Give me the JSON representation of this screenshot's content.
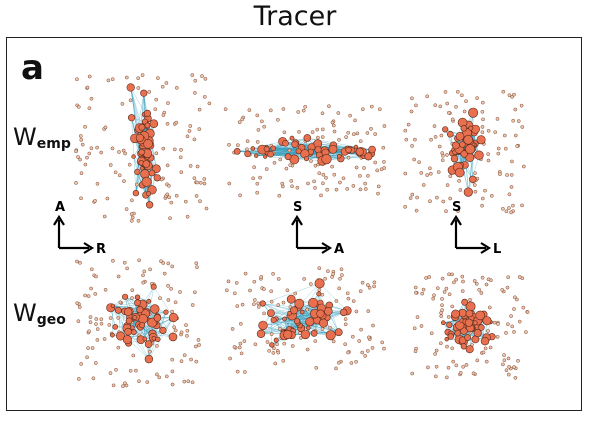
{
  "title": "Tracer",
  "panel_letter": "a",
  "rows": [
    {
      "symbol": "W",
      "subscript": "emp"
    },
    {
      "symbol": "W",
      "subscript": "geo"
    }
  ],
  "orientation_axes": [
    {
      "vertical": "A",
      "horizontal": "R"
    },
    {
      "vertical": "S",
      "horizontal": "A"
    },
    {
      "vertical": "S",
      "horizontal": "L"
    }
  ],
  "colors": {
    "edge": "#3aa0bd",
    "node_fill": "#e8704f",
    "node_stroke": "#5a2a1a",
    "small_node": "#f2c4a8",
    "frame": "#222222"
  }
}
